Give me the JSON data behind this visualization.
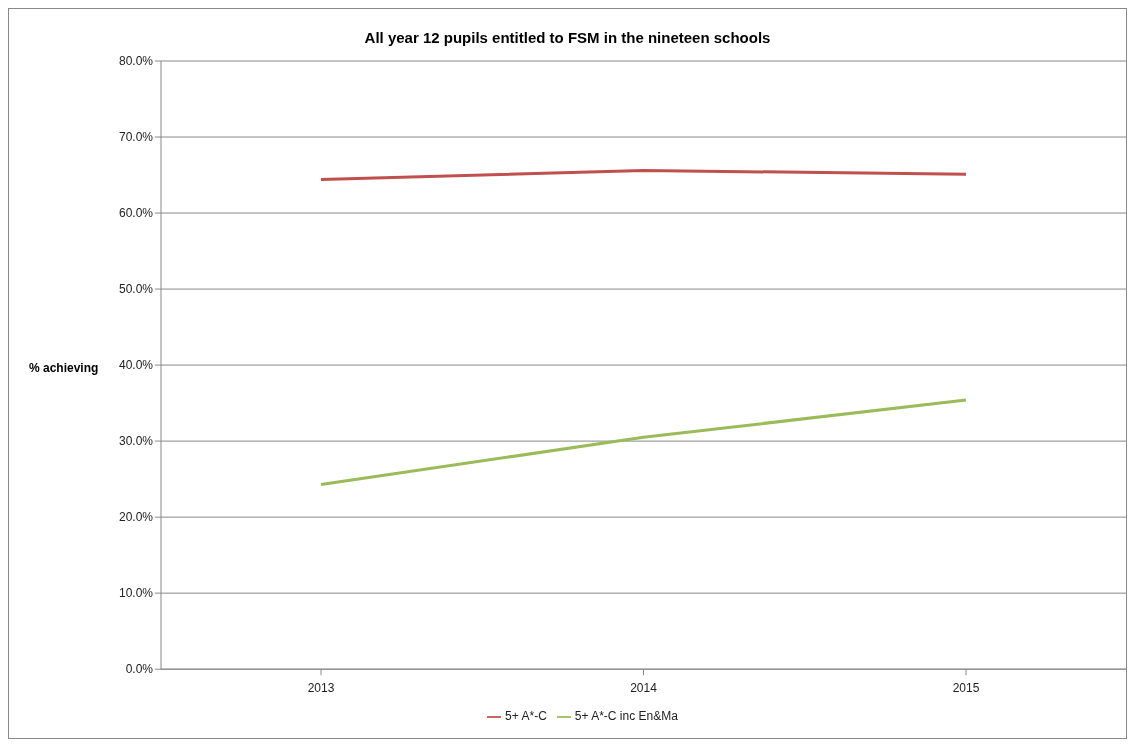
{
  "chart_data": {
    "type": "line",
    "title": "All year 12 pupils entitled to FSM in the nineteen schools",
    "ylabel": "% achieving",
    "categories": [
      "2013",
      "2014",
      "2015"
    ],
    "series": [
      {
        "name": "5+ A*-C",
        "color": "#c0504d",
        "values": [
          64.4,
          65.6,
          65.1
        ]
      },
      {
        "name": "5+ A*-C inc En&Ma",
        "color": "#9bbb59",
        "values": [
          24.3,
          30.5,
          35.4
        ]
      }
    ],
    "ylim": [
      0,
      80
    ],
    "yticks": [
      {
        "value": 0,
        "label": "0.0%"
      },
      {
        "value": 10,
        "label": "10.0%"
      },
      {
        "value": 20,
        "label": "20.0%"
      },
      {
        "value": 30,
        "label": "30.0%"
      },
      {
        "value": 40,
        "label": "40.0%"
      },
      {
        "value": 50,
        "label": "50.0%"
      },
      {
        "value": 60,
        "label": "60.0%"
      },
      {
        "value": 70,
        "label": "70.0%"
      },
      {
        "value": 80,
        "label": "80.0%"
      }
    ],
    "grid": "y",
    "legend": "bottom",
    "marker": "none",
    "line_style": "solid"
  }
}
